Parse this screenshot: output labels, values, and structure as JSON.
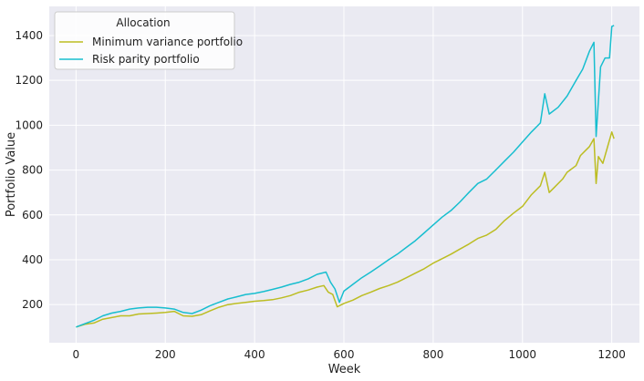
{
  "chart_data": {
    "type": "line",
    "xlabel": "Week",
    "ylabel": "Portfolio Value",
    "xlim": [
      -60,
      1262
    ],
    "ylim": [
      30,
      1530
    ],
    "x_ticks": [
      0,
      200,
      400,
      600,
      800,
      1000,
      1200
    ],
    "y_ticks": [
      200,
      400,
      600,
      800,
      1000,
      1200,
      1400
    ],
    "x_tick_labels": [
      "0",
      "200",
      "400",
      "600",
      "800",
      "1000",
      "1200"
    ],
    "y_tick_labels": [
      "200",
      "400",
      "600",
      "800",
      "1000",
      "1200",
      "1400"
    ],
    "grid": true,
    "legend": {
      "title": "Allocation",
      "placement": "top-left"
    },
    "series": [
      {
        "name": "Minimum variance portfolio",
        "color": "#bcbd22",
        "points": [
          [
            0,
            100
          ],
          [
            20,
            112
          ],
          [
            40,
            118
          ],
          [
            60,
            135
          ],
          [
            80,
            142
          ],
          [
            100,
            150
          ],
          [
            120,
            150
          ],
          [
            140,
            158
          ],
          [
            160,
            160
          ],
          [
            180,
            162
          ],
          [
            200,
            165
          ],
          [
            220,
            170
          ],
          [
            240,
            150
          ],
          [
            260,
            148
          ],
          [
            280,
            155
          ],
          [
            300,
            172
          ],
          [
            320,
            188
          ],
          [
            340,
            200
          ],
          [
            360,
            205
          ],
          [
            380,
            210
          ],
          [
            400,
            215
          ],
          [
            420,
            218
          ],
          [
            440,
            222
          ],
          [
            460,
            230
          ],
          [
            480,
            240
          ],
          [
            500,
            255
          ],
          [
            520,
            265
          ],
          [
            540,
            278
          ],
          [
            555,
            285
          ],
          [
            565,
            255
          ],
          [
            575,
            245
          ],
          [
            585,
            190
          ],
          [
            600,
            205
          ],
          [
            620,
            220
          ],
          [
            640,
            240
          ],
          [
            660,
            255
          ],
          [
            680,
            272
          ],
          [
            700,
            285
          ],
          [
            720,
            300
          ],
          [
            740,
            320
          ],
          [
            760,
            340
          ],
          [
            780,
            360
          ],
          [
            800,
            385
          ],
          [
            820,
            405
          ],
          [
            840,
            425
          ],
          [
            860,
            448
          ],
          [
            880,
            470
          ],
          [
            900,
            495
          ],
          [
            920,
            510
          ],
          [
            940,
            535
          ],
          [
            960,
            575
          ],
          [
            980,
            608
          ],
          [
            1000,
            638
          ],
          [
            1020,
            690
          ],
          [
            1040,
            730
          ],
          [
            1050,
            790
          ],
          [
            1060,
            700
          ],
          [
            1070,
            720
          ],
          [
            1090,
            760
          ],
          [
            1100,
            790
          ],
          [
            1120,
            820
          ],
          [
            1130,
            865
          ],
          [
            1140,
            885
          ],
          [
            1150,
            905
          ],
          [
            1160,
            940
          ],
          [
            1165,
            740
          ],
          [
            1170,
            860
          ],
          [
            1180,
            830
          ],
          [
            1190,
            900
          ],
          [
            1200,
            970
          ],
          [
            1205,
            940
          ]
        ]
      },
      {
        "name": "Risk parity portfolio",
        "color": "#17becf",
        "points": [
          [
            0,
            100
          ],
          [
            20,
            115
          ],
          [
            40,
            130
          ],
          [
            60,
            150
          ],
          [
            80,
            162
          ],
          [
            100,
            170
          ],
          [
            120,
            180
          ],
          [
            140,
            185
          ],
          [
            160,
            188
          ],
          [
            180,
            188
          ],
          [
            200,
            185
          ],
          [
            220,
            180
          ],
          [
            240,
            165
          ],
          [
            260,
            160
          ],
          [
            280,
            175
          ],
          [
            300,
            195
          ],
          [
            320,
            210
          ],
          [
            340,
            225
          ],
          [
            360,
            235
          ],
          [
            380,
            245
          ],
          [
            400,
            250
          ],
          [
            420,
            258
          ],
          [
            440,
            268
          ],
          [
            460,
            278
          ],
          [
            480,
            290
          ],
          [
            500,
            300
          ],
          [
            520,
            315
          ],
          [
            540,
            335
          ],
          [
            560,
            345
          ],
          [
            570,
            300
          ],
          [
            580,
            270
          ],
          [
            590,
            210
          ],
          [
            600,
            260
          ],
          [
            620,
            290
          ],
          [
            640,
            320
          ],
          [
            660,
            345
          ],
          [
            680,
            372
          ],
          [
            700,
            400
          ],
          [
            720,
            425
          ],
          [
            740,
            455
          ],
          [
            760,
            485
          ],
          [
            780,
            520
          ],
          [
            800,
            555
          ],
          [
            820,
            590
          ],
          [
            840,
            620
          ],
          [
            860,
            658
          ],
          [
            880,
            700
          ],
          [
            900,
            740
          ],
          [
            920,
            760
          ],
          [
            940,
            800
          ],
          [
            960,
            840
          ],
          [
            980,
            880
          ],
          [
            1000,
            925
          ],
          [
            1020,
            970
          ],
          [
            1040,
            1010
          ],
          [
            1050,
            1140
          ],
          [
            1060,
            1050
          ],
          [
            1080,
            1080
          ],
          [
            1100,
            1130
          ],
          [
            1120,
            1200
          ],
          [
            1135,
            1250
          ],
          [
            1150,
            1330
          ],
          [
            1160,
            1370
          ],
          [
            1165,
            950
          ],
          [
            1175,
            1260
          ],
          [
            1185,
            1300
          ],
          [
            1195,
            1300
          ],
          [
            1200,
            1440
          ],
          [
            1205,
            1445
          ]
        ]
      }
    ]
  }
}
